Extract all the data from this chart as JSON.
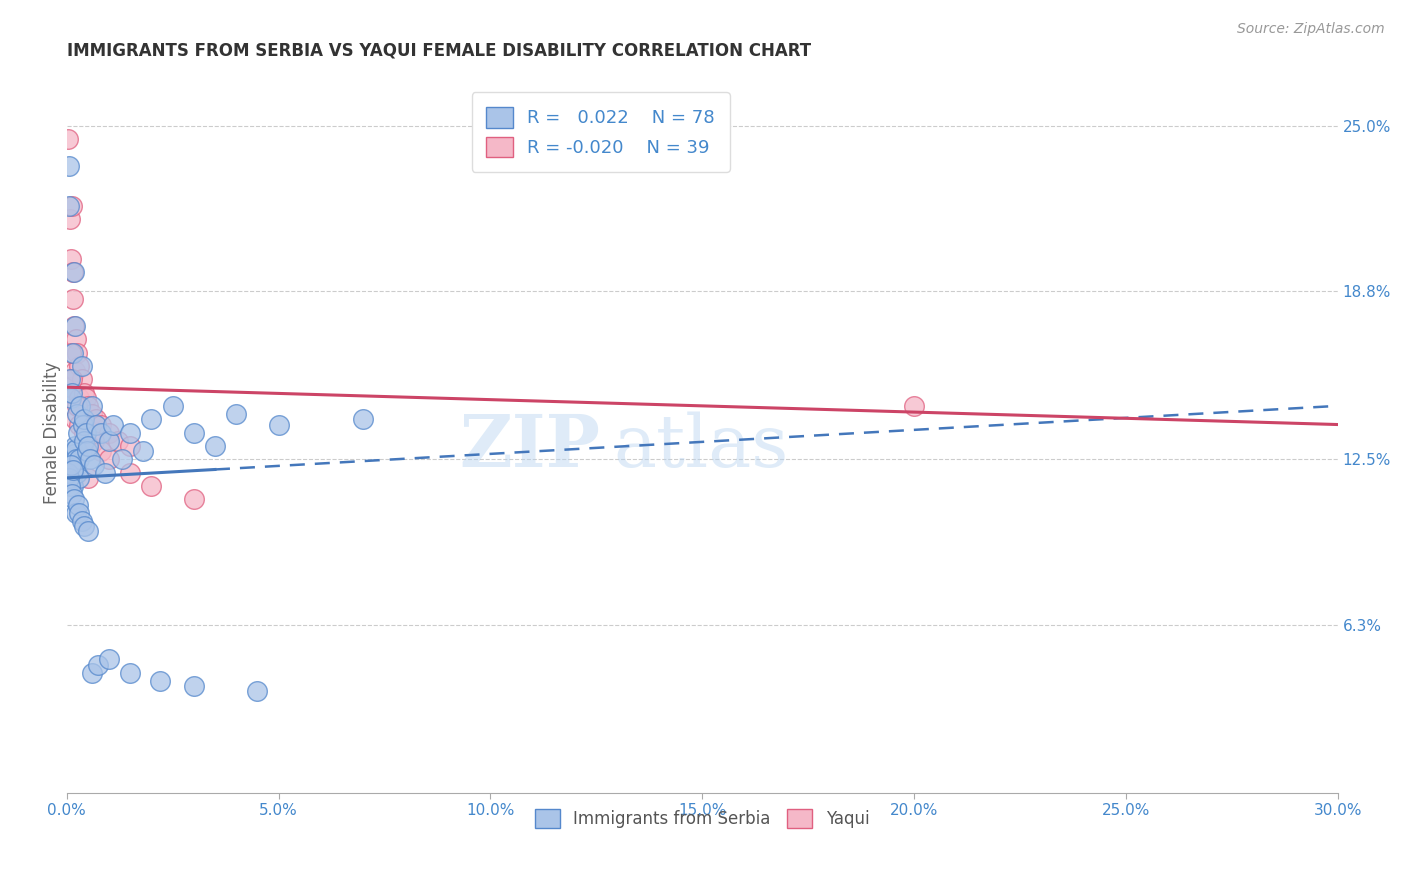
{
  "title": "IMMIGRANTS FROM SERBIA VS YAQUI FEMALE DISABILITY CORRELATION CHART",
  "source": "Source: ZipAtlas.com",
  "xlabel_ticks": [
    "0.0%",
    "5.0%",
    "10.0%",
    "15.0%",
    "20.0%",
    "25.0%",
    "30.0%"
  ],
  "xlabel_vals": [
    0.0,
    5.0,
    10.0,
    15.0,
    20.0,
    25.0,
    30.0
  ],
  "ylabel": "Female Disability",
  "right_ytick_labels": [
    "6.3%",
    "12.5%",
    "18.8%",
    "25.0%"
  ],
  "right_ytick_vals": [
    6.3,
    12.5,
    18.8,
    25.0
  ],
  "ylim": [
    0,
    27
  ],
  "xlim": [
    0,
    30
  ],
  "blue_color": "#aac4e8",
  "pink_color": "#f5b8c8",
  "blue_edge_color": "#5588cc",
  "pink_edge_color": "#e06080",
  "blue_line_color": "#4477bb",
  "pink_line_color": "#cc4466",
  "watermark": "ZIPatlas",
  "legend_r_blue": "0.022",
  "legend_n_blue": "78",
  "legend_r_pink": "-0.020",
  "legend_n_pink": "39",
  "blue_x": [
    0.02,
    0.03,
    0.05,
    0.05,
    0.06,
    0.07,
    0.08,
    0.08,
    0.09,
    0.1,
    0.1,
    0.11,
    0.12,
    0.12,
    0.13,
    0.14,
    0.15,
    0.15,
    0.16,
    0.17,
    0.18,
    0.19,
    0.2,
    0.2,
    0.21,
    0.22,
    0.23,
    0.24,
    0.25,
    0.27,
    0.28,
    0.3,
    0.32,
    0.35,
    0.38,
    0.4,
    0.42,
    0.45,
    0.48,
    0.5,
    0.55,
    0.6,
    0.65,
    0.7,
    0.8,
    0.9,
    1.0,
    1.1,
    1.3,
    1.5,
    1.8,
    2.0,
    2.5,
    3.0,
    3.5,
    4.0,
    5.0,
    7.0,
    0.04,
    0.06,
    0.08,
    0.1,
    0.12,
    0.15,
    0.18,
    0.22,
    0.26,
    0.3,
    0.35,
    0.4,
    0.5,
    0.6,
    0.75,
    1.0,
    1.5,
    2.2,
    3.0,
    4.5
  ],
  "blue_y": [
    12.5,
    11.8,
    23.5,
    22.0,
    12.2,
    12.0,
    12.3,
    15.5,
    12.1,
    14.8,
    11.9,
    12.4,
    11.7,
    15.0,
    12.6,
    11.5,
    16.5,
    12.8,
    12.3,
    19.5,
    12.7,
    12.1,
    17.5,
    13.0,
    12.9,
    12.5,
    12.2,
    12.0,
    14.2,
    13.5,
    11.8,
    12.5,
    14.5,
    16.0,
    13.8,
    14.0,
    13.2,
    13.5,
    12.8,
    13.0,
    12.5,
    14.5,
    12.3,
    13.8,
    13.5,
    12.0,
    13.2,
    13.8,
    12.5,
    13.5,
    12.8,
    14.0,
    14.5,
    13.5,
    13.0,
    14.2,
    13.8,
    14.0,
    12.0,
    11.8,
    11.5,
    12.3,
    11.2,
    12.1,
    11.0,
    10.5,
    10.8,
    10.5,
    10.2,
    10.0,
    9.8,
    4.5,
    4.8,
    5.0,
    4.5,
    4.2,
    4.0,
    3.8
  ],
  "pink_x": [
    0.03,
    0.05,
    0.07,
    0.08,
    0.1,
    0.12,
    0.14,
    0.16,
    0.18,
    0.2,
    0.22,
    0.25,
    0.28,
    0.3,
    0.35,
    0.4,
    0.45,
    0.5,
    0.6,
    0.7,
    0.8,
    1.0,
    1.2,
    1.5,
    0.12,
    0.2,
    0.3,
    0.4,
    0.55,
    0.65,
    0.8,
    1.0,
    1.5,
    2.0,
    3.0,
    0.1,
    0.25,
    0.5,
    20.0
  ],
  "pink_y": [
    24.5,
    15.0,
    21.5,
    15.2,
    20.0,
    22.0,
    19.5,
    18.5,
    17.5,
    15.8,
    17.0,
    16.5,
    14.8,
    16.0,
    15.5,
    15.0,
    14.8,
    14.5,
    14.2,
    14.0,
    13.8,
    13.5,
    13.2,
    13.0,
    15.5,
    14.0,
    13.8,
    13.5,
    13.0,
    13.2,
    12.8,
    12.5,
    12.0,
    11.5,
    11.0,
    16.5,
    14.5,
    11.8,
    14.5
  ],
  "blue_trend_start_x": 0.0,
  "blue_trend_end_solid_x": 3.5,
  "blue_trend_end_x": 30.0,
  "blue_trend_start_y": 11.8,
  "blue_trend_end_y": 14.5,
  "pink_trend_start_x": 0.0,
  "pink_trend_end_x": 30.0,
  "pink_trend_start_y": 15.2,
  "pink_trend_end_y": 13.8
}
